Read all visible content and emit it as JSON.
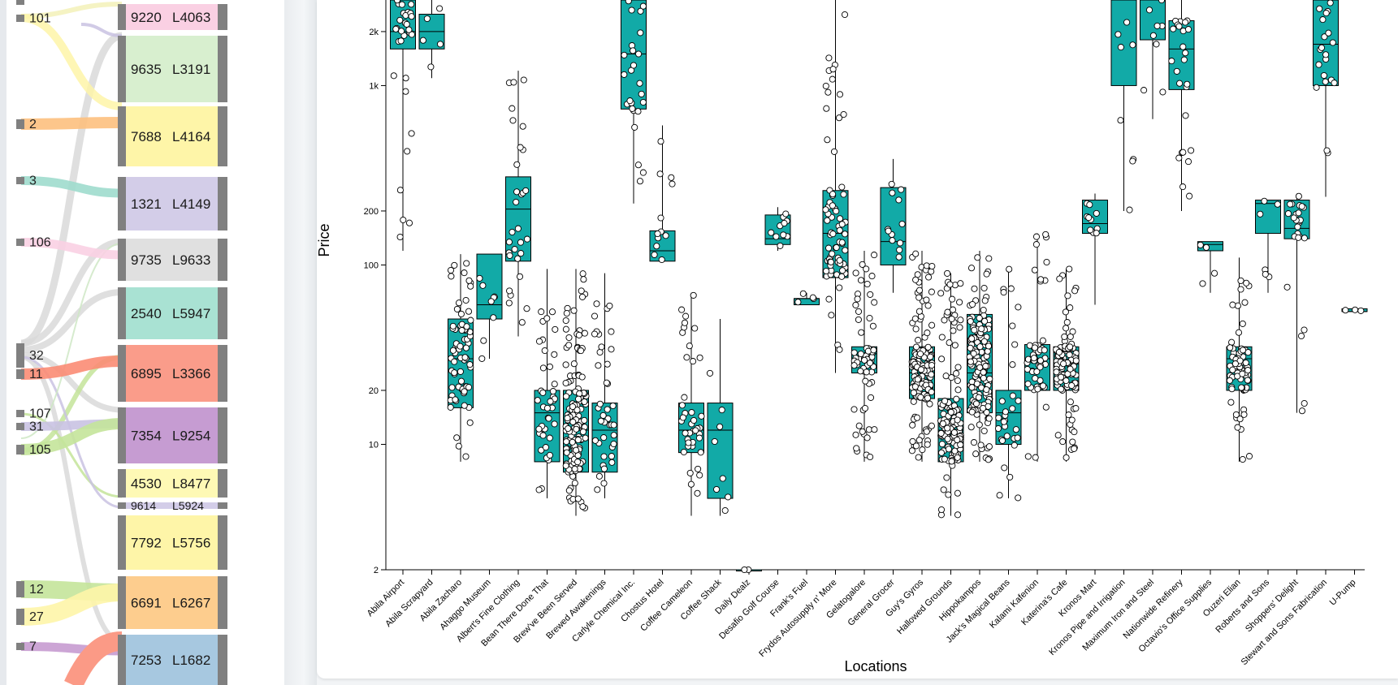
{
  "sankey": {
    "sources": [
      {
        "label": "101",
        "color": "#fef5a8"
      },
      {
        "label": "2",
        "color": "#fdc07e"
      },
      {
        "label": "3",
        "color": "#9edccd"
      },
      {
        "label": "106",
        "color": "#fad0e3"
      },
      {
        "label": "32",
        "color": "#d9d9d9"
      },
      {
        "label": "11",
        "color": "#fb8c74"
      },
      {
        "label": "107",
        "color": "#d9d9d9"
      },
      {
        "label": "31",
        "color": "#c9c2e2"
      },
      {
        "label": "105",
        "color": "#c4e49a"
      },
      {
        "label": "12",
        "color": "#c4e49a"
      },
      {
        "label": "27",
        "color": "#fef5a8"
      },
      {
        "label": "7",
        "color": "#c79bd0"
      }
    ],
    "targets": [
      {
        "value": "9220",
        "code": "L4063",
        "color": "#fad0e3"
      },
      {
        "value": "9635",
        "code": "L3191",
        "color": "#d8efcf"
      },
      {
        "value": "7688",
        "code": "L4164",
        "color": "#fef5a8"
      },
      {
        "value": "1321",
        "code": "L4149",
        "color": "#d3cde8"
      },
      {
        "value": "9735",
        "code": "L9633",
        "color": "#e0e0e0"
      },
      {
        "value": "2540",
        "code": "L5947",
        "color": "#a9e2d3"
      },
      {
        "value": "6895",
        "code": "L3366",
        "color": "#fa9c8a"
      },
      {
        "value": "7354",
        "code": "L9254",
        "color": "#c69cd2"
      },
      {
        "value": "4530",
        "code": "L8477",
        "color": "#fef9b5"
      },
      {
        "value": "9614",
        "code": "L5924",
        "color": "#d3cde8"
      },
      {
        "value": "7792",
        "code": "L5756",
        "color": "#fef5a8"
      },
      {
        "value": "6691",
        "code": "L6267",
        "color": "#fdcd8e"
      },
      {
        "value": "7253",
        "code": "L1682",
        "color": "#a7c8e0"
      }
    ]
  },
  "chart_data": {
    "type": "box",
    "title": "",
    "xlabel": "Locations",
    "ylabel": "Price",
    "yscale": "log",
    "ylim": [
      2,
      3000
    ],
    "yticks": [
      {
        "value": 2,
        "label": "2"
      },
      {
        "value": 10,
        "label": "10"
      },
      {
        "value": 20,
        "label": "20"
      },
      {
        "value": 100,
        "label": "100"
      },
      {
        "value": 200,
        "label": "200"
      },
      {
        "value": 1000,
        "label": "1k"
      },
      {
        "value": 2000,
        "label": "2k"
      }
    ],
    "box_color": "#12aaa7",
    "categories": [
      "Abila Airport",
      "Abila Scrapyard",
      "Abila Zacharo",
      "Ahaggo Museum",
      "Albert's Fine Clothing",
      "Bean There Done That",
      "Brew've Been Served",
      "Brewed Awakenings",
      "Carlyle Chemical Inc.",
      "Chostus Hotel",
      "Coffee Cameleon",
      "Coffee Shack",
      "Daily Dealz",
      "Desafio Golf Course",
      "Frank's Fuel",
      "Frydos Autosupply n' More",
      "Gelatogalore",
      "General Grocer",
      "Guy's Gyros",
      "Hallowed Grounds",
      "Hippokampos",
      "Jack's Magical Beans",
      "Kalami Kafenion",
      "Katerina's Cafe",
      "Kronos Mart",
      "Kronos Pipe and Irrigation",
      "Maximum Iron and Steel",
      "Nationwide Refinery",
      "Octavio's Office Supplies",
      "Ouzeri Elian",
      "Roberts and Sons",
      "Shoppers' Delight",
      "Stewart and Sons Fabrication",
      "U-Pump"
    ],
    "boxes": [
      {
        "min": 120,
        "q1": 1600,
        "median": 2000,
        "q3": 3000,
        "max": 3000,
        "n": 30
      },
      {
        "min": 1100,
        "q1": 1600,
        "median": 2000,
        "q3": 2500,
        "max": 3000,
        "n": 5
      },
      {
        "min": 8,
        "q1": 16,
        "median": 30,
        "q3": 50,
        "max": 115,
        "n": 70
      },
      {
        "min": 30,
        "q1": 50,
        "median": 60,
        "q3": 115,
        "max": 115,
        "n": 8
      },
      {
        "min": 40,
        "q1": 105,
        "median": 205,
        "q3": 310,
        "max": 1210,
        "n": 30
      },
      {
        "min": 5,
        "q1": 8,
        "median": 15,
        "q3": 20,
        "max": 95,
        "n": 40
      },
      {
        "min": 4,
        "q1": 7,
        "median": 12,
        "q3": 20,
        "max": 95,
        "n": 140
      },
      {
        "min": 5,
        "q1": 7,
        "median": 12,
        "q3": 17,
        "max": 90,
        "n": 40
      },
      {
        "min": 220,
        "q1": 740,
        "median": 1500,
        "q3": 3000,
        "max": 3000,
        "n": 25
      },
      {
        "min": 105,
        "q1": 105,
        "median": 120,
        "q3": 155,
        "max": 600,
        "n": 12
      },
      {
        "min": 4,
        "q1": 9,
        "median": 12,
        "q3": 17,
        "max": 70,
        "n": 40
      },
      {
        "min": 4,
        "q1": 5,
        "median": 12,
        "q3": 17,
        "max": 50,
        "n": 8
      },
      {
        "min": 2,
        "q1": 2,
        "median": 2,
        "q3": 2,
        "max": 2,
        "n": 2
      },
      {
        "min": 120,
        "q1": 130,
        "median": 140,
        "q3": 190,
        "max": 210,
        "n": 10
      },
      {
        "min": 60,
        "q1": 60,
        "median": 65,
        "q3": 65,
        "max": 70,
        "n": 4
      },
      {
        "min": 25,
        "q1": 85,
        "median": 150,
        "q3": 260,
        "max": 3000,
        "n": 70
      },
      {
        "min": 8,
        "q1": 25,
        "median": 32,
        "q3": 35,
        "max": 120,
        "n": 70
      },
      {
        "min": 70,
        "q1": 100,
        "median": 135,
        "q3": 270,
        "max": 390,
        "n": 12
      },
      {
        "min": 8,
        "q1": 18,
        "median": 25,
        "q3": 35,
        "max": 120,
        "n": 160
      },
      {
        "min": 4,
        "q1": 8,
        "median": 12,
        "q3": 18,
        "max": 90,
        "n": 140
      },
      {
        "min": 8,
        "q1": 15,
        "median": 25,
        "q3": 53,
        "max": 120,
        "n": 160
      },
      {
        "min": 5,
        "q1": 10,
        "median": 15,
        "q3": 20,
        "max": 95,
        "n": 30
      },
      {
        "min": 8,
        "q1": 20,
        "median": 30,
        "q3": 36,
        "max": 150,
        "n": 50
      },
      {
        "min": 8,
        "q1": 20,
        "median": 28,
        "q3": 35,
        "max": 95,
        "n": 130
      },
      {
        "min": 60,
        "q1": 150,
        "median": 170,
        "q3": 230,
        "max": 250,
        "n": 10
      },
      {
        "min": 200,
        "q1": 1000,
        "median": 3000,
        "q3": 3000,
        "max": 3000,
        "n": 8
      },
      {
        "min": 650,
        "q1": 1800,
        "median": 3000,
        "q3": 3000,
        "max": 3000,
        "n": 8
      },
      {
        "min": 200,
        "q1": 950,
        "median": 1600,
        "q3": 2300,
        "max": 3000,
        "n": 25
      },
      {
        "min": 70,
        "q1": 120,
        "median": 130,
        "q3": 135,
        "max": 135,
        "n": 4
      },
      {
        "min": 8,
        "q1": 20,
        "median": 30,
        "q3": 35,
        "max": 110,
        "n": 70
      },
      {
        "min": 70,
        "q1": 150,
        "median": 220,
        "q3": 230,
        "max": 230,
        "n": 6
      },
      {
        "min": 15,
        "q1": 140,
        "median": 160,
        "q3": 230,
        "max": 250,
        "n": 25
      },
      {
        "min": 240,
        "q1": 1000,
        "median": 1700,
        "q3": 3000,
        "max": 3000,
        "n": 20
      },
      {
        "min": 55,
        "q1": 55,
        "median": 55,
        "q3": 57,
        "max": 57,
        "n": 3
      }
    ]
  }
}
